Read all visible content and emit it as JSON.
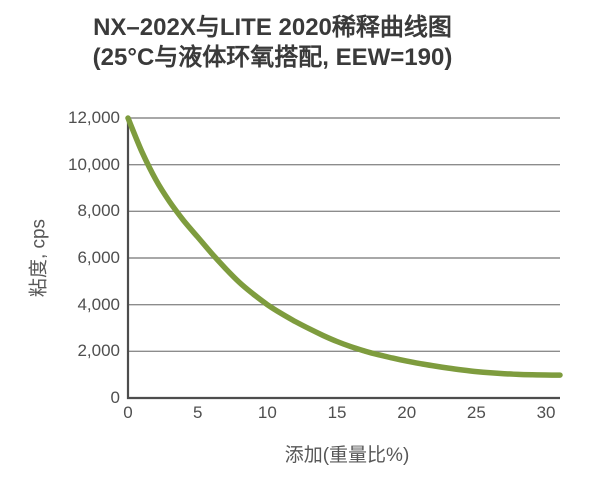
{
  "page": {
    "background": "#ffffff"
  },
  "chart_data": {
    "type": "line",
    "title": "NX–202X与LITE 2020稀释曲线图",
    "subtitle": "(25°C与液体环氧搭配, EEW=190)",
    "xlabel": "添加(重量比%)",
    "ylabel": "粘度, cps",
    "xlim": [
      0,
      31
    ],
    "ylim": [
      0,
      12000
    ],
    "x_ticks": [
      0,
      5,
      10,
      15,
      20,
      25,
      30
    ],
    "x_tick_labels": [
      "0",
      "5",
      "10",
      "15",
      "20",
      "25",
      "30"
    ],
    "y_ticks": [
      12000,
      10000,
      8000,
      6000,
      4000,
      2000,
      0
    ],
    "y_tick_labels": [
      "12,000",
      "10,000",
      "8,000",
      "6,000",
      "4,000",
      "2,000",
      "0"
    ],
    "grid": "horizontal",
    "legend": "none",
    "series": [
      {
        "color": "#7E9C3E",
        "points": [
          [
            0,
            12000
          ],
          [
            1,
            10550
          ],
          [
            2,
            9350
          ],
          [
            3,
            8400
          ],
          [
            4,
            7600
          ],
          [
            5,
            6900
          ],
          [
            6,
            6200
          ],
          [
            7,
            5550
          ],
          [
            8,
            4950
          ],
          [
            9,
            4450
          ],
          [
            10,
            4000
          ],
          [
            11,
            3620
          ],
          [
            12,
            3280
          ],
          [
            13,
            2970
          ],
          [
            14,
            2680
          ],
          [
            15,
            2420
          ],
          [
            16,
            2200
          ],
          [
            17,
            2010
          ],
          [
            18,
            1850
          ],
          [
            19,
            1710
          ],
          [
            20,
            1580
          ],
          [
            21,
            1470
          ],
          [
            22,
            1370
          ],
          [
            23,
            1280
          ],
          [
            24,
            1200
          ],
          [
            25,
            1130
          ],
          [
            26,
            1080
          ],
          [
            27,
            1040
          ],
          [
            28,
            1010
          ],
          [
            29,
            995
          ],
          [
            30,
            985
          ],
          [
            31,
            980
          ]
        ]
      }
    ],
    "colors": {
      "curve": "#7E9C3E",
      "gridline": "#8C8C8C",
      "axis": "#4D4D4D",
      "title_text": "#3A3A3A",
      "tick_text": "#4F4F4F",
      "axis_label_text": "#575757"
    }
  }
}
